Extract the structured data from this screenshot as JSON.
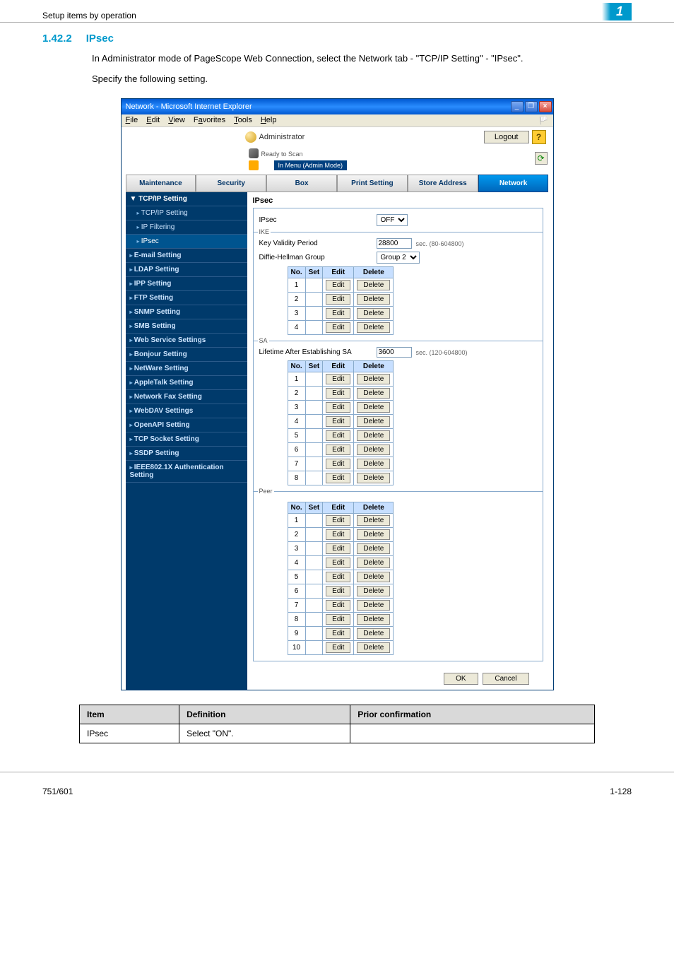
{
  "page_header": "Setup items by operation",
  "page_badge": "1",
  "section": {
    "num": "1.42.2",
    "title": "IPsec"
  },
  "intro1": "In Administrator mode of PageScope Web Connection, select the Network tab - \"TCP/IP Setting\" - \"IPsec\".",
  "intro2": "Specify the following setting.",
  "window": {
    "title": "Network - Microsoft Internet Explorer",
    "menu": [
      "File",
      "Edit",
      "View",
      "Favorites",
      "Tools",
      "Help"
    ],
    "admin_label": "Administrator",
    "status_ready": "Ready to Scan",
    "status_mode": "In Menu (Admin Mode)",
    "logout": "Logout",
    "tabs": [
      "Maintenance",
      "Security",
      "Box",
      "Print Setting",
      "Store Address",
      "Network"
    ],
    "active_tab": 5,
    "sidebar": [
      {
        "label": "TCP/IP Setting",
        "group": true
      },
      {
        "label": "TCP/IP Setting",
        "sub": true
      },
      {
        "label": "IP Filtering",
        "sub": true
      },
      {
        "label": "IPsec",
        "sub": true,
        "sel": true
      },
      {
        "label": "E-mail Setting"
      },
      {
        "label": "LDAP Setting"
      },
      {
        "label": "IPP Setting"
      },
      {
        "label": "FTP Setting"
      },
      {
        "label": "SNMP Setting"
      },
      {
        "label": "SMB Setting"
      },
      {
        "label": "Web Service Settings"
      },
      {
        "label": "Bonjour Setting"
      },
      {
        "label": "NetWare Setting"
      },
      {
        "label": "AppleTalk Setting"
      },
      {
        "label": "Network Fax Setting"
      },
      {
        "label": "WebDAV Settings"
      },
      {
        "label": "OpenAPI Setting"
      },
      {
        "label": "TCP Socket Setting"
      },
      {
        "label": "SSDP Setting"
      },
      {
        "label": "IEEE802.1X Authentication Setting"
      }
    ],
    "panel": {
      "heading": "IPsec",
      "ipsec_label": "IPsec",
      "ipsec_value": "OFF",
      "ike_heading": "IKE",
      "kvp_label": "Key Validity Period",
      "kvp_value": "28800",
      "kvp_hint": "sec. (80-604800)",
      "dh_label": "Diffie-Hellman Group",
      "dh_value": "Group 2",
      "ike_rows": 4,
      "sa_heading": "SA",
      "sa_label": "Lifetime After Establishing SA",
      "sa_value": "3600",
      "sa_hint": "sec. (120-604800)",
      "sa_rows": 8,
      "peer_heading": "Peer",
      "peer_rows": 10,
      "th": {
        "no": "No.",
        "set": "Set",
        "edit": "Edit",
        "del": "Delete"
      },
      "edit_btn": "Edit",
      "del_btn": "Delete",
      "ok": "OK",
      "cancel": "Cancel"
    }
  },
  "def_table": {
    "headers": [
      "Item",
      "Definition",
      "Prior confirmation"
    ],
    "rows": [
      [
        "IPsec",
        "Select \"ON\".",
        ""
      ]
    ]
  },
  "footer": {
    "left": "751/601",
    "right": "1-128"
  }
}
